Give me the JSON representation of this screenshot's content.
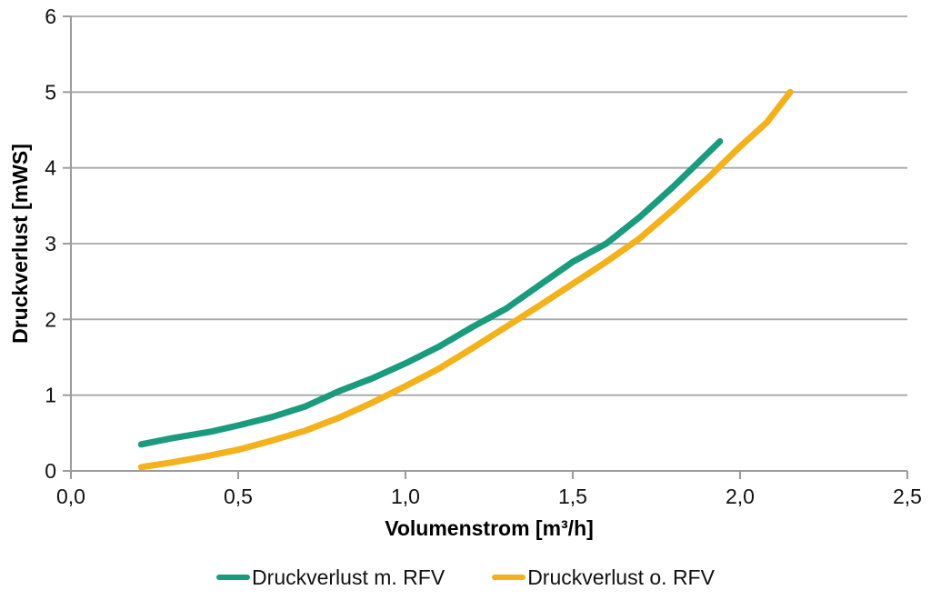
{
  "chart_data": {
    "type": "line",
    "title": "",
    "xlabel": "Volumenstrom [m³/h]",
    "ylabel": "Druckverlust [mWS]",
    "xlim": [
      0,
      2.5
    ],
    "ylim": [
      0,
      6
    ],
    "grid": "horizontal",
    "gridline_color": "#a6a6a6",
    "legend_position": "bottom",
    "xticks": [
      {
        "value": 0.0,
        "label": "0,0"
      },
      {
        "value": 0.5,
        "label": "0,5"
      },
      {
        "value": 1.0,
        "label": "1,0"
      },
      {
        "value": 1.5,
        "label": "1,5"
      },
      {
        "value": 2.0,
        "label": "2,0"
      },
      {
        "value": 2.5,
        "label": "2,5"
      }
    ],
    "yticks": [
      {
        "value": 0,
        "label": "0"
      },
      {
        "value": 1,
        "label": "1"
      },
      {
        "value": 2,
        "label": "2"
      },
      {
        "value": 3,
        "label": "3"
      },
      {
        "value": 4,
        "label": "4"
      },
      {
        "value": 5,
        "label": "5"
      },
      {
        "value": 6,
        "label": "6"
      }
    ],
    "series": [
      {
        "name": "Druckverlust m. RFV",
        "color": "#1a9b7d",
        "points": [
          [
            0.21,
            0.35
          ],
          [
            0.3,
            0.43
          ],
          [
            0.42,
            0.52
          ],
          [
            0.5,
            0.6
          ],
          [
            0.6,
            0.71
          ],
          [
            0.7,
            0.85
          ],
          [
            0.8,
            1.05
          ],
          [
            0.9,
            1.22
          ],
          [
            1.0,
            1.42
          ],
          [
            1.1,
            1.64
          ],
          [
            1.2,
            1.9
          ],
          [
            1.3,
            2.14
          ],
          [
            1.4,
            2.45
          ],
          [
            1.5,
            2.76
          ],
          [
            1.6,
            3.0
          ],
          [
            1.7,
            3.35
          ],
          [
            1.8,
            3.75
          ],
          [
            1.87,
            4.05
          ],
          [
            1.94,
            4.35
          ]
        ]
      },
      {
        "name": "Druckverlust o. RFV",
        "color": "#f3b11b",
        "points": [
          [
            0.21,
            0.05
          ],
          [
            0.3,
            0.11
          ],
          [
            0.4,
            0.19
          ],
          [
            0.5,
            0.28
          ],
          [
            0.6,
            0.4
          ],
          [
            0.7,
            0.53
          ],
          [
            0.8,
            0.7
          ],
          [
            0.9,
            0.9
          ],
          [
            1.0,
            1.12
          ],
          [
            1.1,
            1.35
          ],
          [
            1.2,
            1.62
          ],
          [
            1.3,
            1.9
          ],
          [
            1.4,
            2.18
          ],
          [
            1.5,
            2.47
          ],
          [
            1.6,
            2.76
          ],
          [
            1.7,
            3.07
          ],
          [
            1.8,
            3.45
          ],
          [
            1.9,
            3.85
          ],
          [
            2.0,
            4.28
          ],
          [
            2.08,
            4.6
          ],
          [
            2.15,
            5.0
          ]
        ]
      }
    ]
  }
}
